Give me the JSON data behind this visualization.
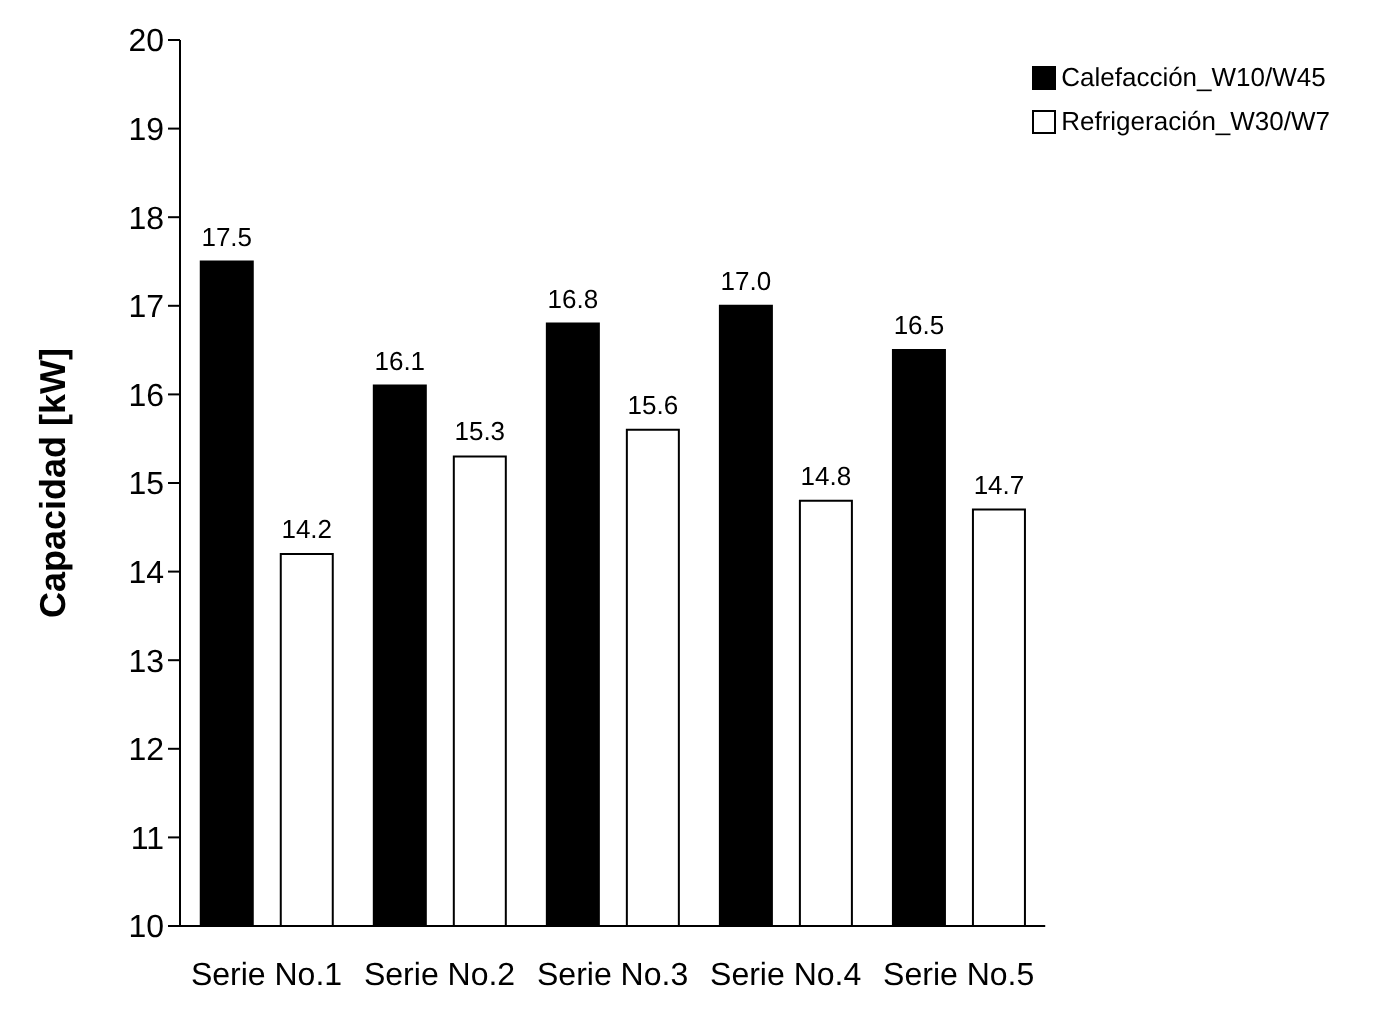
{
  "chart_data": {
    "type": "bar",
    "ylabel": "Capacidad [kW]",
    "categories": [
      "Serie No.1",
      "Serie No.2",
      "Serie No.3",
      "Serie No.4",
      "Serie No.5"
    ],
    "series": [
      {
        "name": "Calefacción_W10/W45",
        "color": "#000000",
        "values": [
          17.5,
          16.1,
          16.8,
          17.0,
          16.5
        ],
        "value_labels": [
          "17.5",
          "16.1",
          "16.8",
          "17.0",
          "16.5"
        ]
      },
      {
        "name": "Refrigeración_W30/W7",
        "color": "#ffffff",
        "values": [
          14.2,
          15.3,
          15.6,
          14.8,
          14.7
        ],
        "value_labels": [
          "14.2",
          "15.3",
          "15.6",
          "14.8",
          "14.7"
        ]
      }
    ],
    "ylim": [
      10,
      20
    ],
    "yticks": [
      10,
      11,
      12,
      13,
      14,
      15,
      16,
      17,
      18,
      19,
      20
    ],
    "grid": false,
    "legend": "top right"
  }
}
